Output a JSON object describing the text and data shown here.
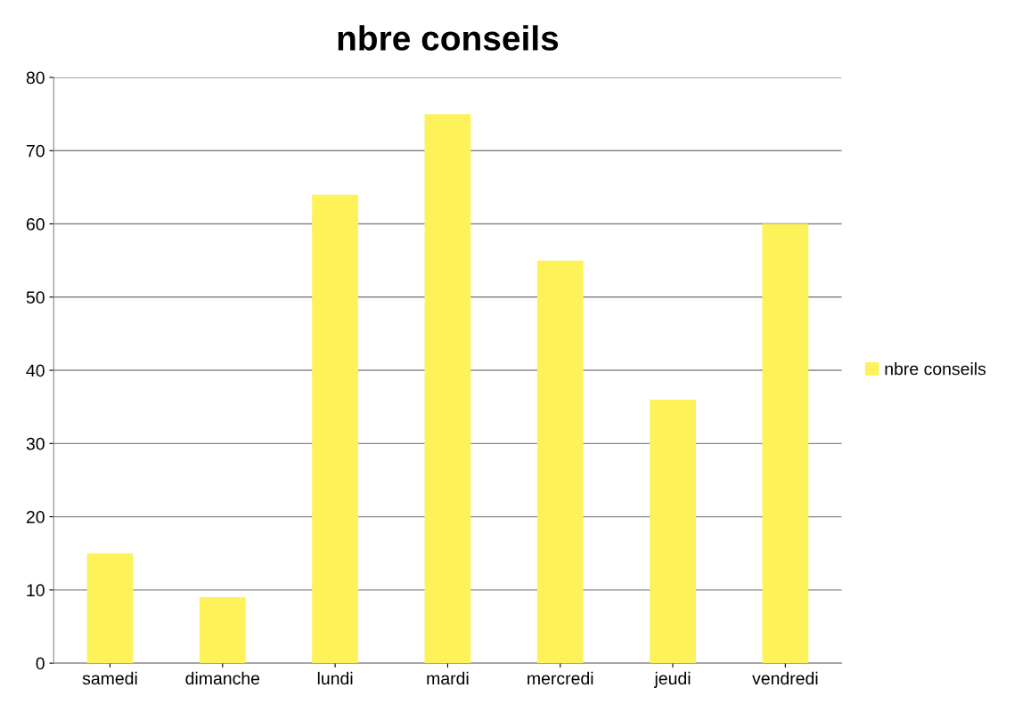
{
  "chart_data": {
    "type": "bar",
    "title": "nbre conseils",
    "categories": [
      "samedi",
      "dimanche",
      "lundi",
      "mardi",
      "mercredi",
      "jeudi",
      "vendredi"
    ],
    "series": [
      {
        "name": "nbre conseils",
        "color": "#fdf25a",
        "values": [
          15,
          9,
          64,
          75,
          55,
          36,
          60
        ]
      }
    ],
    "ylim": [
      0,
      80
    ],
    "yticks": [
      0,
      10,
      20,
      30,
      40,
      50,
      60,
      70,
      80
    ],
    "grid": "y",
    "legend": "right"
  }
}
